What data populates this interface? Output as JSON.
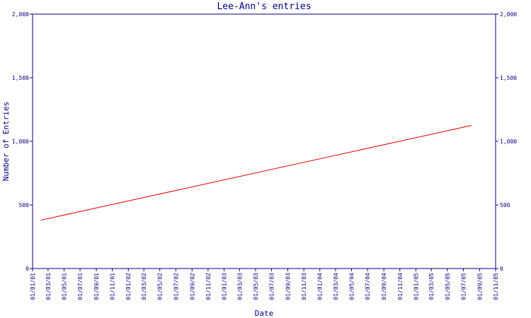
{
  "colors": {
    "background": "#ffffff",
    "axis": "#000080",
    "text": "#000080",
    "series": "#e00000"
  },
  "chart_data": {
    "type": "line",
    "title": "Lee-Ann's entries",
    "xlabel": "Date",
    "ylabel": "Number of Entries",
    "ylim": [
      0,
      2000
    ],
    "y_ticks": [
      0,
      500,
      1000,
      1500,
      2000
    ],
    "y_tick_labels": [
      "0",
      "500",
      "1,000",
      "1,500",
      "2,000"
    ],
    "right_axis": true,
    "grid": false,
    "x_ticks": [
      "01/01/01",
      "01/03/01",
      "01/05/01",
      "01/07/01",
      "01/09/01",
      "01/11/01",
      "01/01/02",
      "01/03/02",
      "01/05/02",
      "01/07/02",
      "01/09/02",
      "01/11/02",
      "01/01/03",
      "01/03/03",
      "01/05/03",
      "01/07/03",
      "01/09/03",
      "01/11/03",
      "01/01/04",
      "01/03/04",
      "01/05/04",
      "01/07/04",
      "01/09/04",
      "01/11/04",
      "01/01/05",
      "01/03/05",
      "01/05/05",
      "01/07/05",
      "01/09/05",
      "01/11/05"
    ],
    "series": [
      {
        "x": [
          "01/02/01",
          "01/08/05"
        ],
        "values": [
          380,
          1125
        ]
      }
    ]
  }
}
